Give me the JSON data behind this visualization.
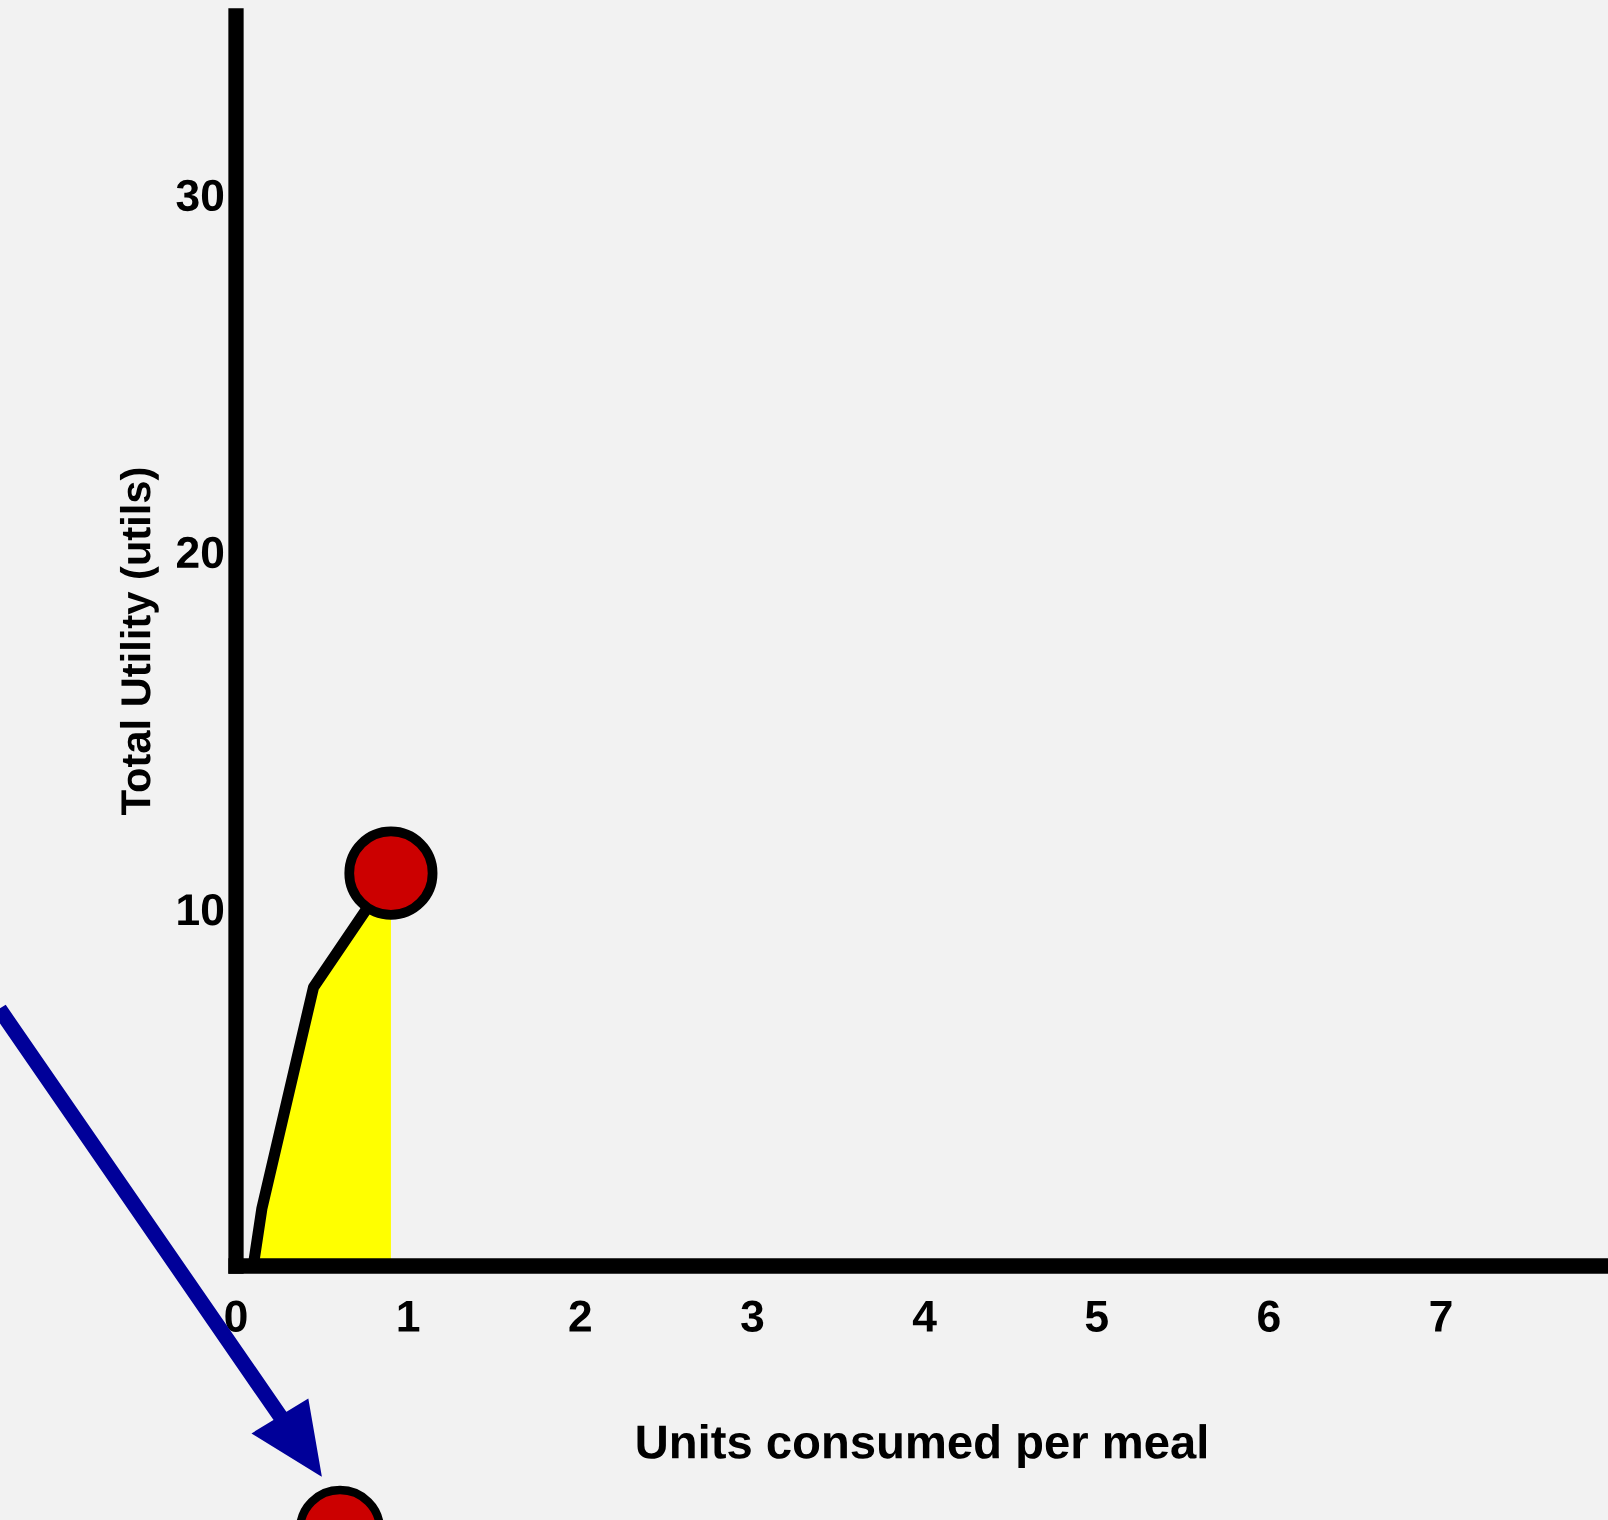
{
  "chart_data": {
    "type": "area",
    "xlabel": "Units consumed per meal",
    "ylabel": "Total Utility (utils)",
    "xlim": [
      0,
      7.97
    ],
    "xticks": [
      0,
      1,
      2,
      3,
      4,
      5,
      6,
      7
    ],
    "ylim": [
      0,
      35
    ],
    "yticks": [
      10,
      20,
      30
    ],
    "grid": false,
    "legend": false,
    "series": [
      {
        "color": "#ffff00",
        "x": [
          0.1,
          0.15,
          0.45,
          0.9
        ],
        "values": [
          0,
          1.6,
          7.8,
          11
        ],
        "marker": "none"
      },
      {
        "type": "scatter",
        "color": "#cc0000",
        "x": [
          0.9
        ],
        "values": [
          11
        ],
        "marker": "circle"
      }
    ]
  }
}
